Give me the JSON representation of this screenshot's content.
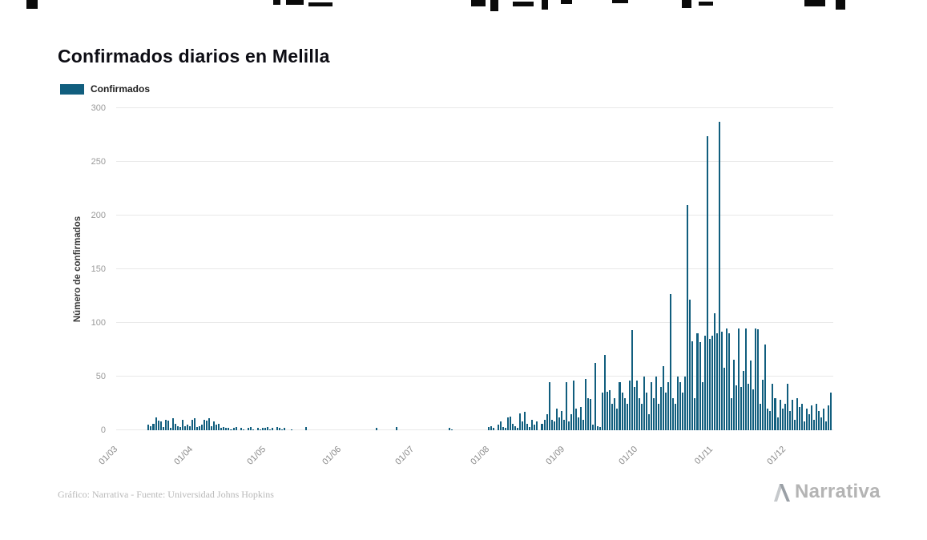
{
  "page": {
    "title": "Confirmados diarios en Melilla",
    "footer_credit": "Gráfico: Narrativa - Fuente: Universidad Johns Hopkins",
    "brand": "Narrativa"
  },
  "legend": {
    "label": "Confirmados"
  },
  "chart_data": {
    "type": "bar",
    "title": "Confirmados diarios en Melilla",
    "xlabel": "",
    "ylabel": "Número de confirmados",
    "ylim": [
      0,
      300
    ],
    "yticks": [
      0,
      50,
      100,
      150,
      200,
      250,
      300
    ],
    "grid": true,
    "legend_position": "top-left",
    "bar_color": "#115e7e",
    "x_tick_labels": [
      "01/03",
      "01/04",
      "01/05",
      "01/06",
      "01/07",
      "01/08",
      "01/09",
      "01/10",
      "01/11",
      "01/12"
    ],
    "x_tick_day_index": [
      0,
      31,
      61,
      92,
      122,
      153,
      184,
      214,
      245,
      275
    ],
    "n_days": 295,
    "series": [
      {
        "name": "Confirmados",
        "values": [
          0,
          0,
          0,
          0,
          0,
          0,
          0,
          0,
          0,
          0,
          0,
          0,
          0,
          5,
          4,
          6,
          12,
          9,
          8,
          3,
          10,
          9,
          2,
          11,
          6,
          4,
          3,
          10,
          4,
          5,
          4,
          10,
          11,
          3,
          4,
          5,
          10,
          9,
          11,
          4,
          8,
          5,
          6,
          2,
          3,
          2,
          2,
          1,
          2,
          3,
          0,
          2,
          1,
          0,
          2,
          3,
          1,
          0,
          2,
          1,
          2,
          2,
          3,
          1,
          2,
          0,
          3,
          2,
          1,
          2,
          0,
          0,
          1,
          0,
          0,
          0,
          0,
          0,
          3,
          0,
          0,
          0,
          0,
          0,
          0,
          0,
          0,
          0,
          0,
          0,
          0,
          0,
          0,
          0,
          0,
          0,
          0,
          0,
          0,
          0,
          0,
          0,
          0,
          0,
          0,
          0,
          0,
          2,
          0,
          0,
          0,
          0,
          0,
          0,
          0,
          3,
          0,
          0,
          0,
          0,
          0,
          0,
          0,
          0,
          0,
          0,
          0,
          0,
          0,
          0,
          0,
          0,
          0,
          0,
          0,
          0,
          0,
          2,
          1,
          0,
          0,
          0,
          0,
          0,
          0,
          0,
          0,
          0,
          0,
          0,
          0,
          0,
          0,
          3,
          4,
          2,
          0,
          5,
          8,
          3,
          2,
          12,
          13,
          6,
          4,
          2,
          16,
          8,
          17,
          6,
          3,
          10,
          5,
          8,
          0,
          6,
          10,
          15,
          45,
          10,
          8,
          20,
          12,
          18,
          10,
          45,
          8,
          15,
          46,
          20,
          12,
          22,
          10,
          48,
          30,
          29,
          5,
          63,
          4,
          3,
          35,
          70,
          36,
          37,
          25,
          30,
          20,
          45,
          35,
          30,
          25,
          46,
          93,
          40,
          46,
          30,
          25,
          50,
          35,
          15,
          45,
          30,
          50,
          25,
          40,
          60,
          35,
          45,
          127,
          30,
          25,
          50,
          45,
          35,
          50,
          210,
          122,
          83,
          30,
          90,
          82,
          45,
          88,
          274,
          85,
          88,
          109,
          90,
          287,
          92,
          58,
          95,
          90,
          30,
          66,
          42,
          95,
          40,
          55,
          95,
          43,
          65,
          38,
          95,
          94,
          25,
          47,
          80,
          20,
          18,
          43,
          30,
          12,
          28,
          20,
          25,
          43,
          18,
          28,
          10,
          30,
          22,
          25,
          8,
          20,
          15,
          23,
          10,
          25,
          18,
          12,
          20,
          8,
          23,
          35
        ]
      }
    ]
  }
}
